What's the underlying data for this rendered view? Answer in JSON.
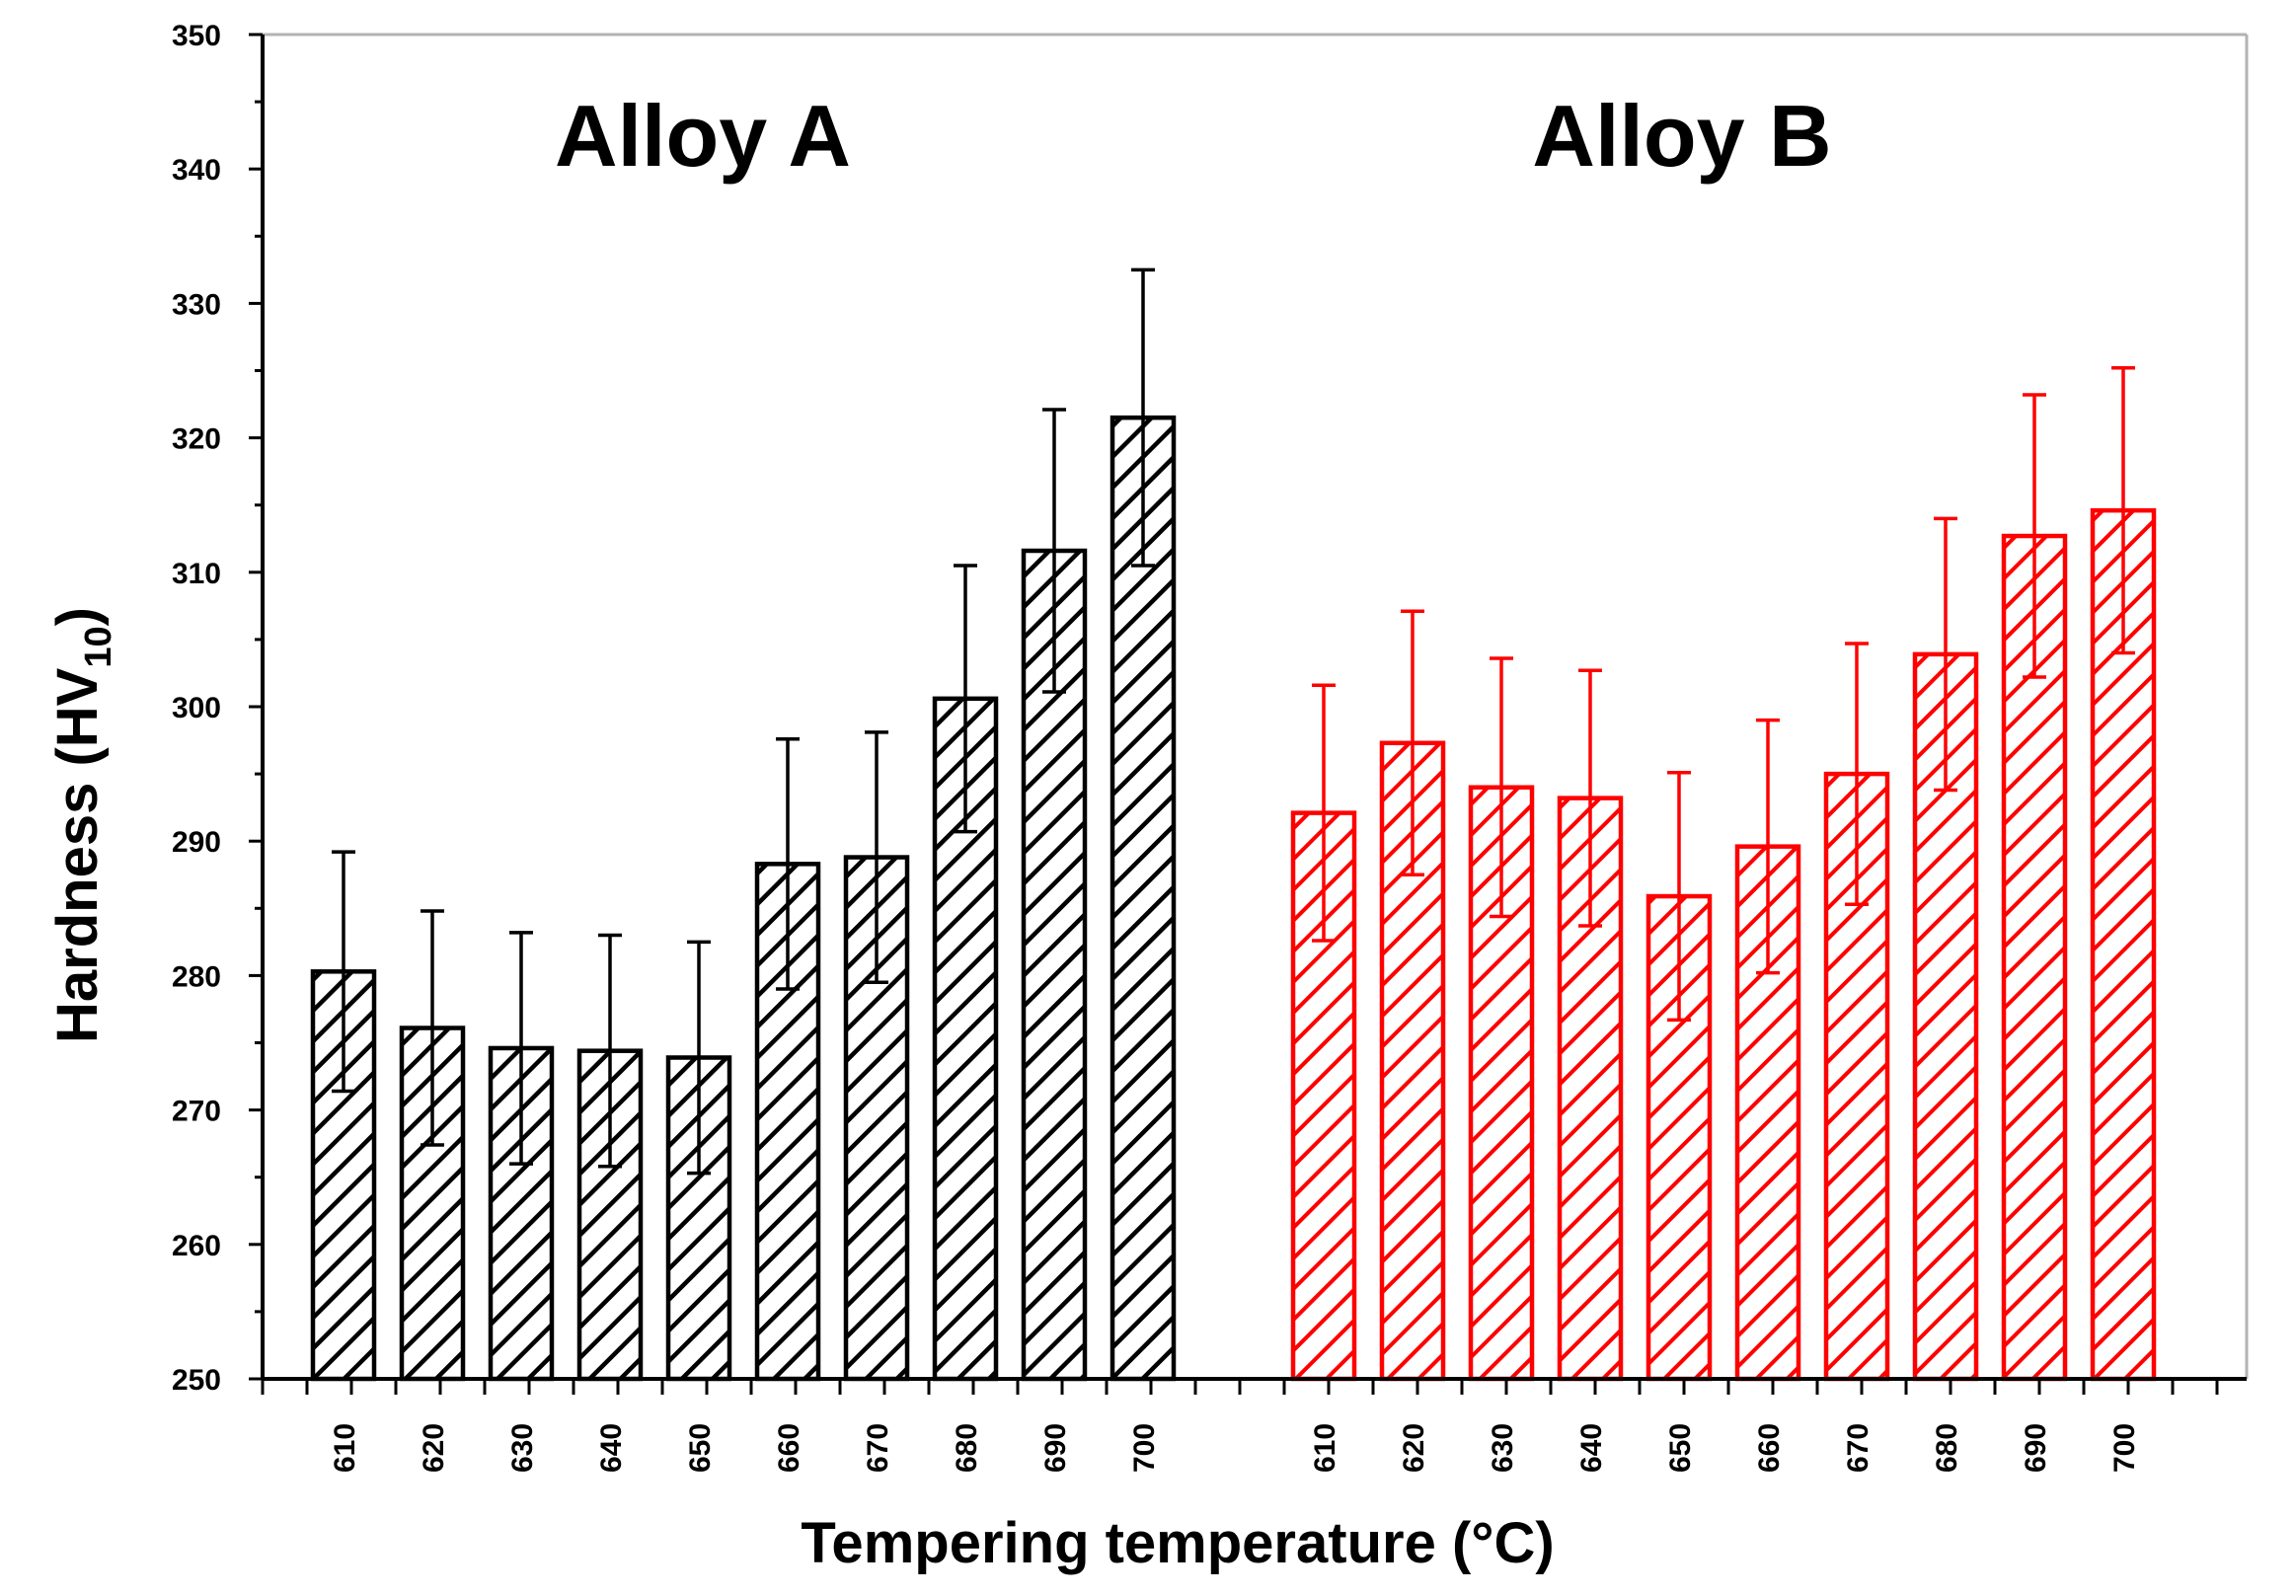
{
  "chart_data": {
    "type": "bar",
    "xlabel": "Tempering temperature (°C)",
    "ylabel": {
      "prefix": "Hardness (HV",
      "subscript": "10",
      "suffix": ")"
    },
    "ylim": [
      250,
      350
    ],
    "yticks": [
      250,
      260,
      270,
      280,
      290,
      300,
      310,
      320,
      330,
      340,
      350
    ],
    "grid": false,
    "categories": [
      "610",
      "620",
      "630",
      "640",
      "650",
      "660",
      "670",
      "680",
      "690",
      "700"
    ],
    "series": [
      {
        "name": "Alloy A",
        "color": "#000000",
        "values": [
          280.3,
          276.1,
          274.6,
          274.4,
          273.9,
          288.3,
          288.8,
          300.6,
          311.6,
          321.5
        ],
        "errors": [
          8.9,
          8.7,
          8.6,
          8.6,
          8.6,
          9.3,
          9.3,
          9.9,
          10.5,
          11.0
        ]
      },
      {
        "name": "Alloy B",
        "color": "#ff0000",
        "values": [
          292.1,
          297.3,
          294.0,
          293.2,
          285.9,
          289.6,
          295.0,
          303.9,
          312.7,
          314.6
        ],
        "errors": [
          9.5,
          9.8,
          9.6,
          9.5,
          9.2,
          9.4,
          9.7,
          10.1,
          10.5,
          10.6
        ]
      }
    ]
  }
}
